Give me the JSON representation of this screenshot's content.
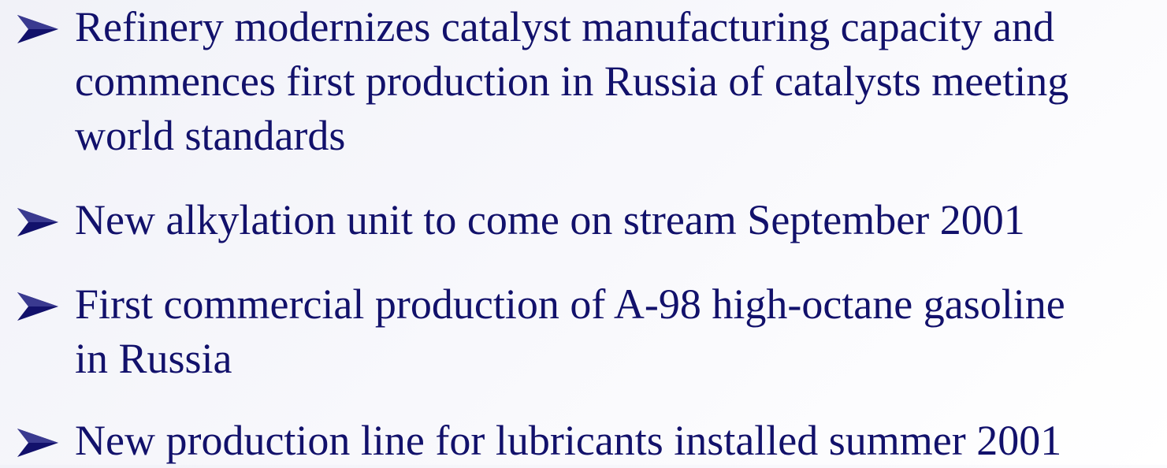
{
  "bullets": [
    [
      "Refinery modernizes catalyst manufacturing capacity and",
      "commences first production in Russia of catalysts meeting",
      "world standards"
    ],
    [
      "New alkylation unit to come on stream September 2001"
    ],
    [
      "First commercial production of A-98 high-octane gasoline",
      "in Russia"
    ],
    [
      "New production line for lubricants installed summer 2001"
    ]
  ]
}
